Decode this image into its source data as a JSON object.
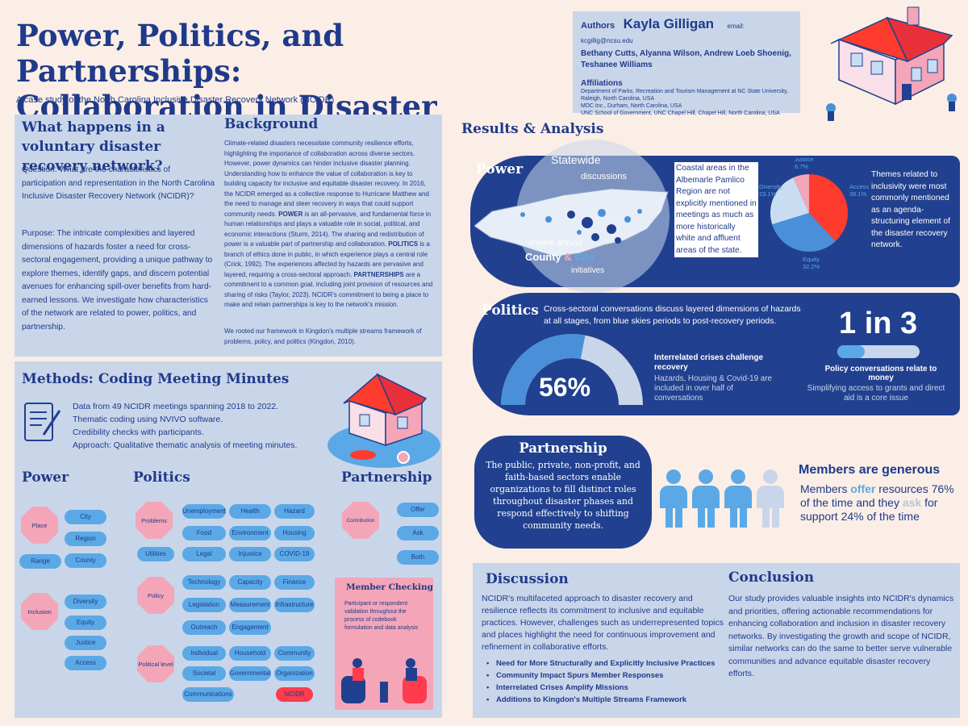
{
  "header": {
    "title_line1": "Power, Politics, and Partnerships:",
    "title_line2": "Collaboration in Disaster Networks",
    "subtitle": "A case study of the North Carolina Inclusive Disaster Recovery Network (NCIDR)"
  },
  "authors": {
    "label": "Authors",
    "lead": "Kayla Gilligan",
    "email": "email: kcgillig@ncsu.edu",
    "coauthors_line1": "Bethany Cutts, Alyanna Wilson, Andrew Loeb Shoenig,",
    "coauthors_line2": "Teshanee Williams",
    "affiliations_label": "Affiliations",
    "aff1": "Department of Parks, Recreation and Tourism Management at NC State University,",
    "aff2": "Raleigh, North Carolina, USA",
    "aff3": "MDC Inc., Durham, North Carolina, USA",
    "aff4": "UNC School of Government, UNC Chapel Hill, Chapel Hill, North Carolina, USA"
  },
  "question": {
    "heading": "What happens in a voluntary disaster recovery network?",
    "q": "Question: What are the characteristics of participation and representation in the North Carolina Inclusive Disaster Recovery Network (NCIDR)?",
    "purpose": "Purpose: The intricate complexities and layered dimensions of hazards foster a need for cross-sectoral engagement, providing a unique pathway to explore themes, identify gaps, and discern potential avenues for enhancing spill-over benefits from hard-earned lessons. We investigate how characteristics of the network are related to power, politics, and partnership."
  },
  "background": {
    "heading": "Background",
    "p1_a": "Climate-related disasters necessitate community resilience efforts, highlighting the importance of collaboration across diverse sectors. However, power dynamics can hinder inclusive disaster planning. Understanding how to enhance the value of collaboration is key to building capacity for inclusive and equitable disaster recovery. In 2016, the NCIDR emerged as a collective response to Hurricane Matthew and the need to manage and steer recovery in ways that could support community needs. ",
    "power_word": "POWER",
    "p1_b": " is an all-pervasive, and fundamental force in human relationships and plays a valuable role in social, political, and economic interactions (Sturm, 2014). The sharing and redistribution of power is a valuable part of partnership and collaboration. ",
    "politics_word": "POLITICS",
    "p1_c": " is a branch of ethics done in public, in which experience plays a central role (Crick, 1992). The experiences affected by hazards are pervasive and layered, requiring a cross-sectoral approach. ",
    "partnerships_word": "PARTNERSHIPS",
    "p1_d": " are a commitment to a common goal, including joint provision of resources and sharing of risks (Taylor, 2023). NCIDR's commitment to being a place to make and retain partnerships is key to the network's mission.",
    "p2": "We rooted our framework in Kingdon's multiple streams framework of problems, policy, and politics (Kingdon, 2010)."
  },
  "methods": {
    "heading": "Methods: Coding Meeting Minutes",
    "items": [
      "Data from 49 NCIDR meetings spanning 2018 to 2022.",
      "Thematic coding using NVIVO software.",
      "Credibility checks with participants.",
      "Approach: Qualitative thematic analysis of meeting minutes."
    ]
  },
  "codebook": {
    "power_h": "Power",
    "politics_h": "Politics",
    "partnership_h": "Partnership",
    "place": "Place",
    "range": "Range",
    "inclusion": "Inclusion",
    "city": "City",
    "region": "Region",
    "county": "County",
    "diversity": "Diversity",
    "equity": "Equity",
    "justice": "Justice",
    "access": "Access",
    "problems": "Problems",
    "utilities": "Utilities",
    "policy": "Policy",
    "political_level": "Political level",
    "unemployment": "Unemployment",
    "health": "Health",
    "hazard": "Hazard",
    "food": "Food",
    "environment": "Environment",
    "housing": "Housing",
    "legal": "Legal",
    "injustice": "Injustice",
    "covid": "COVID-19",
    "technology": "Technology",
    "capacity": "Capacity",
    "finance": "Finance",
    "legislation": "Legislation",
    "measurement": "Measurement",
    "infrastructure": "Infrastructure",
    "outreach": "Outreach",
    "engagement": "Engagement",
    "individual": "Individual",
    "household": "Household",
    "community": "Community",
    "societal": "Societal",
    "governmental": "Governmental",
    "organization": "Organization",
    "communications": "Communications",
    "ncidr": "NCIDR",
    "contribution": "Contribution",
    "offer": "Offer",
    "ask": "Ask",
    "both": "Both"
  },
  "member_checking": {
    "heading": "Member Checking",
    "text": "Participant or respondent validation throughout the process of codebook formulation and data analysis"
  },
  "results": {
    "heading": "Results & Analysis",
    "power": {
      "heading": "Power",
      "statewide": "Statewide",
      "discussions": "discussions",
      "revolve": "revolve around",
      "county": "County",
      "amp": "&",
      "city": "City",
      "initiatives": "initiatives",
      "coastal": "Coastal areas in the Albemarle Pamlico Region are not explicitly mentioned in meetings as much as more historically white and affluent areas of the state.",
      "themes": "Themes related to inclusivity were most commonly mentioned as an agenda-structuring element of the disaster recovery network."
    },
    "politics": {
      "heading": "Politics",
      "intro": "Cross-sectoral conversations discuss layered dimensions of hazards at all stages, from blue skies periods to post-recovery periods.",
      "pct_label": "56%",
      "crisis_h": "Interrelated crises challenge recovery",
      "crisis_t": "Hazards, Housing & Covid-19 are included in over half of conversations",
      "ratio": "1 in 3",
      "money_h": "Policy conversations relate to money",
      "money_t": "Simplifying access to grants and direct aid is a core issue"
    },
    "partnership": {
      "heading": "Partnership",
      "text": "The public, private, non-profit, and faith-based sectors enable organizations to fill distinct roles throughout disaster phases and respond effectively to shifting community needs.",
      "generous_h": "Members are generous",
      "gen_a": "Members ",
      "offer": "offer",
      "gen_b": " resources 76% of the time and they ",
      "ask": "ask",
      "gen_c": " for support 24% of the time"
    }
  },
  "chart_data": [
    {
      "type": "pie",
      "categories": [
        "Access",
        "Equity",
        "Diversity",
        "Justice"
      ],
      "values": [
        38.1,
        32.2,
        23.1,
        6.7
      ],
      "labels": [
        "Access\n38.1%",
        "Equity\n32.2%",
        "Diversity\n23.1%",
        "Justice\n6.7%"
      ],
      "colors": [
        "#ff3b2e",
        "#4a90d9",
        "#c9ddf2",
        "#f4a6b8"
      ]
    },
    {
      "type": "gauge",
      "value": 56,
      "max": 100,
      "colors": [
        "#4a90d9",
        "#c9d6ea"
      ]
    },
    {
      "type": "progress",
      "value": 0.333,
      "colors": [
        "#5aa9e6",
        "#c9d6ea"
      ]
    }
  ],
  "discussion": {
    "heading": "Discussion",
    "text": "NCIDR's multifaceted approach to disaster recovery and resilience reflects its commitment to inclusive and equitable practices. However, challenges such as underrepresented topics and places highlight the need for continuous improvement and refinement in collaborative efforts.",
    "bullets": [
      "Need for More Structurally and Explicitly Inclusive Practices",
      "Community Impact Spurs Member Responses",
      "Interrelated Crises Amplify Missions",
      "Additions to Kingdon's Multiple Streams Framework"
    ]
  },
  "conclusion": {
    "heading": "Conclusion",
    "text": "Our study provides valuable insights into NCIDR's dynamics and priorities, offering actionable recommendations for enhancing collaboration and inclusion in disaster recovery networks. By investigating the growth and scope of NCIDR, similar networks can do the same to better serve vulnerable communities and advance equitable disaster recovery efforts."
  },
  "colors": {
    "navy": "#21408f",
    "title_blue": "#1f3a8a",
    "panel": "#c9d6ea",
    "background": "#fbeee6",
    "pink": "#f4a6b8",
    "pill_blue": "#5aa9e6",
    "red": "#ff3b2e"
  }
}
